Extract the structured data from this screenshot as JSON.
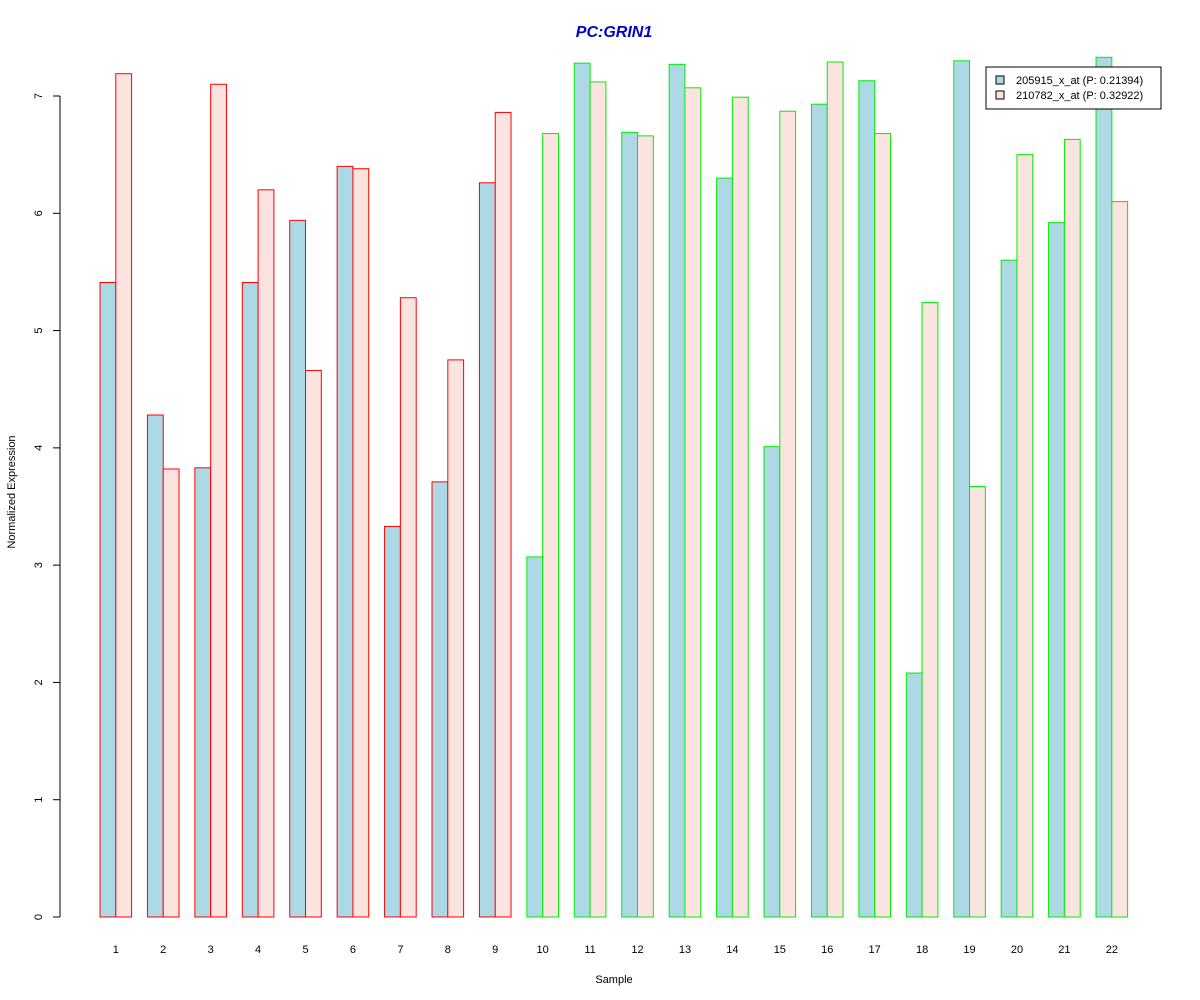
{
  "chart_data": {
    "type": "bar",
    "title": "PC:GRIN1",
    "title_color": "#0000CC",
    "xlabel": "Sample",
    "ylabel": "Normalized Expression",
    "ylim": [
      0,
      7.3
    ],
    "yticks": [
      0,
      1,
      2,
      3,
      4,
      5,
      6,
      7
    ],
    "grid": false,
    "legend_position": "top-right",
    "categories": [
      "1",
      "2",
      "3",
      "4",
      "5",
      "6",
      "7",
      "8",
      "9",
      "10",
      "11",
      "12",
      "13",
      "14",
      "15",
      "16",
      "17",
      "18",
      "19",
      "20",
      "21",
      "22"
    ],
    "group_border_colors": [
      "#FF0000",
      "#FF0000",
      "#FF0000",
      "#FF0000",
      "#FF0000",
      "#FF0000",
      "#FF0000",
      "#FF0000",
      "#FF0000",
      "#00EE00",
      "#00EE00",
      "#00EE00",
      "#00EE00",
      "#00EE00",
      "#00EE00",
      "#00EE00",
      "#00EE00",
      "#00EE00",
      "#00EE00",
      "#00EE00",
      "#00EE00",
      "#00EE00"
    ],
    "series": [
      {
        "name": "205915_x_at (P: 0.21394)",
        "color": "#ADD8E6",
        "values": [
          5.41,
          4.28,
          3.83,
          5.41,
          5.94,
          6.4,
          3.33,
          3.71,
          6.26,
          3.07,
          7.28,
          6.69,
          7.27,
          6.3,
          4.01,
          6.93,
          7.13,
          2.08,
          7.3,
          5.6,
          5.92,
          7.33
        ]
      },
      {
        "name": "210782_x_at (P: 0.32922)",
        "color": "#FBE4E0",
        "values": [
          7.19,
          3.82,
          7.1,
          6.2,
          4.66,
          6.38,
          5.28,
          4.75,
          6.86,
          6.68,
          7.12,
          6.66,
          7.07,
          6.99,
          6.87,
          7.29,
          6.68,
          5.24,
          3.67,
          6.5,
          6.63,
          6.1
        ]
      }
    ]
  }
}
